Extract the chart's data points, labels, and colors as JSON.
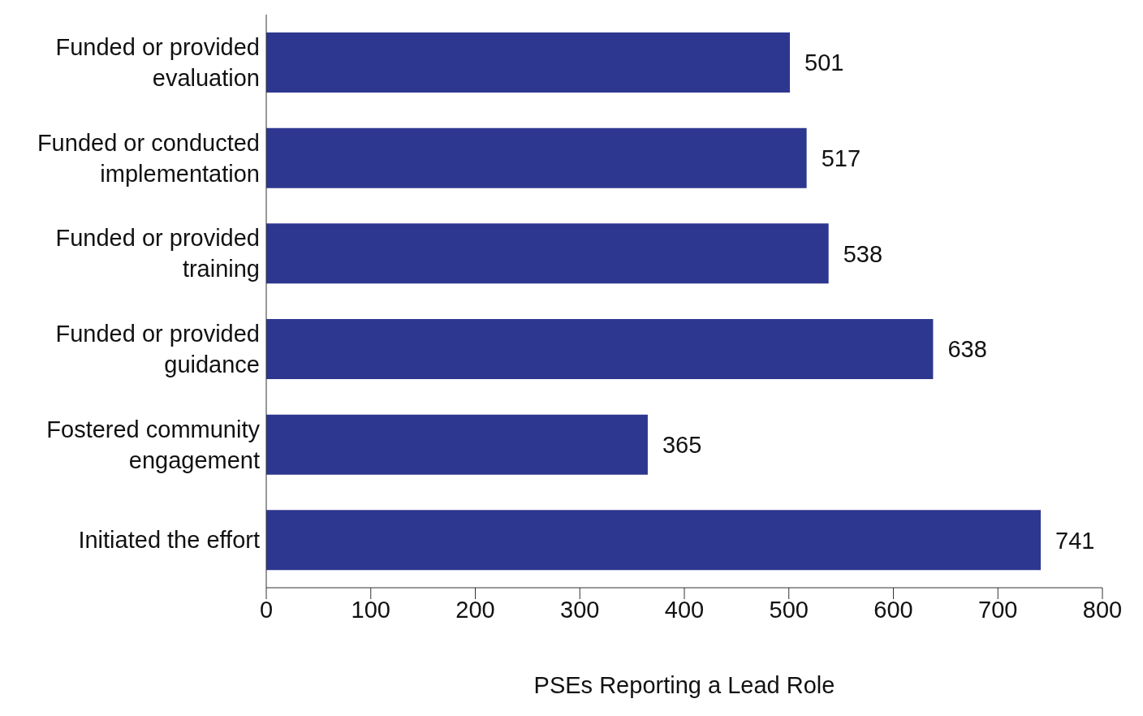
{
  "chart_data": {
    "type": "bar",
    "orientation": "horizontal",
    "xlabel": "PSEs Reporting a Lead Role",
    "categories": [
      "Funded or provided evaluation",
      "Funded or conducted implementation",
      "Funded or provided training",
      "Funded or provided guidance",
      "Fostered community engagement",
      "Initiated the effort"
    ],
    "values": [
      501,
      517,
      538,
      638,
      365,
      741
    ],
    "color": "#2e378f",
    "xlim": [
      0,
      800
    ],
    "xticks": [
      0,
      100,
      200,
      300,
      400,
      500,
      600,
      700,
      800
    ],
    "grid": false,
    "legend": false,
    "data_labels": true
  }
}
